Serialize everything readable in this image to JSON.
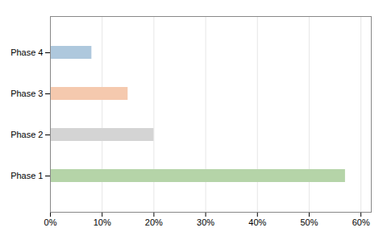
{
  "chart_data": {
    "type": "bar",
    "orientation": "horizontal",
    "categories": [
      "Phase 1",
      "Phase 2",
      "Phase 3",
      "Phase 4"
    ],
    "values": [
      0.57,
      0.2,
      0.15,
      0.08
    ],
    "colors": [
      "#b5d4a8",
      "#d4d4d4",
      "#f5c9ae",
      "#aec8dd"
    ],
    "xlim": [
      0,
      0.62
    ],
    "xticks": [
      {
        "value": 0.0,
        "label": "0%"
      },
      {
        "value": 0.1,
        "label": "10%"
      },
      {
        "value": 0.2,
        "label": "20%"
      },
      {
        "value": 0.3,
        "label": "30%"
      },
      {
        "value": 0.4,
        "label": "40%"
      },
      {
        "value": 0.5,
        "label": "50%"
      },
      {
        "value": 0.6,
        "label": "60%"
      }
    ],
    "grid": true
  }
}
